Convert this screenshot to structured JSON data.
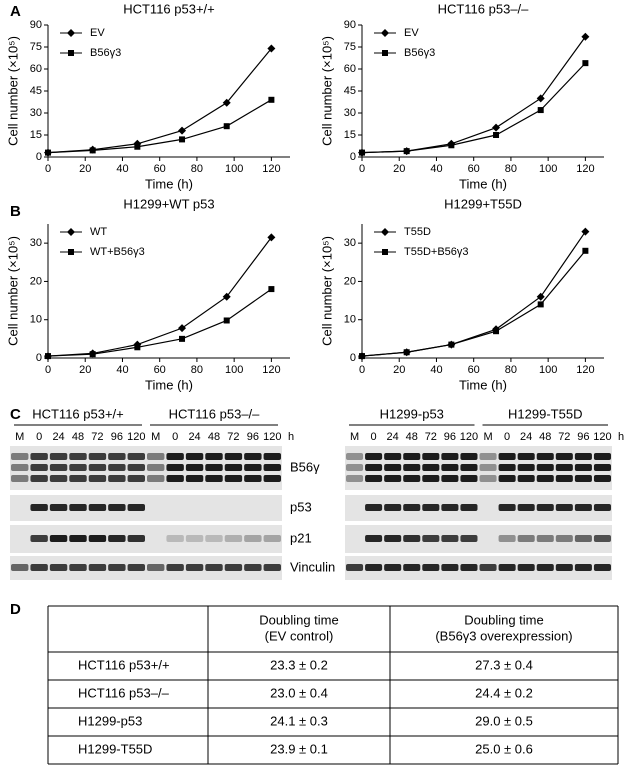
{
  "panel_labels": [
    "A",
    "B",
    "C",
    "D"
  ],
  "chart_data": [
    {
      "type": "line",
      "title": "HCT116 p53+/+",
      "x_label": "Time (h)",
      "y_label": "Cell number (×10⁵)",
      "x": [
        0,
        24,
        48,
        72,
        96,
        120
      ],
      "series": [
        {
          "name": "EV",
          "color": "#000000",
          "marker": "diamond",
          "values": [
            3,
            5,
            9,
            18,
            37,
            74
          ]
        },
        {
          "name": "B56γ3",
          "color": "#000000",
          "marker": "square",
          "values": [
            3,
            4.5,
            7,
            12,
            21,
            39
          ]
        }
      ],
      "xlim": [
        0,
        130
      ],
      "xticks": [
        0,
        20,
        40,
        60,
        80,
        100,
        120
      ],
      "ylim": [
        0,
        90
      ],
      "yticks": [
        0,
        15,
        30,
        45,
        60,
        75,
        90
      ],
      "legend": "upper left"
    },
    {
      "type": "line",
      "title": "HCT116 p53–/–",
      "x_label": "Time (h)",
      "y_label": "Cell number (×10⁵)",
      "x": [
        0,
        24,
        48,
        72,
        96,
        120
      ],
      "series": [
        {
          "name": "EV",
          "color": "#000000",
          "marker": "diamond",
          "values": [
            3,
            4,
            9,
            20,
            40,
            82
          ]
        },
        {
          "name": "B56γ3",
          "color": "#000000",
          "marker": "square",
          "values": [
            3,
            4,
            8,
            15,
            32,
            64
          ]
        }
      ],
      "xlim": [
        0,
        130
      ],
      "xticks": [
        0,
        20,
        40,
        60,
        80,
        100,
        120
      ],
      "ylim": [
        0,
        90
      ],
      "yticks": [
        0,
        15,
        30,
        45,
        60,
        75,
        90
      ],
      "legend": "upper left"
    },
    {
      "type": "line",
      "title": "H1299+WT p53",
      "x_label": "Time (h)",
      "y_label": "Cell number (×10⁵)",
      "x": [
        0,
        24,
        48,
        72,
        96,
        120
      ],
      "series": [
        {
          "name": "WT",
          "color": "#000000",
          "marker": "diamond",
          "values": [
            0.5,
            1.2,
            3.5,
            7.8,
            16,
            31.5
          ]
        },
        {
          "name": "WT+B56γ3",
          "color": "#000000",
          "marker": "square",
          "values": [
            0.5,
            1,
            2.8,
            5,
            9.8,
            18
          ]
        }
      ],
      "xlim": [
        0,
        130
      ],
      "xticks": [
        0,
        20,
        40,
        60,
        80,
        100,
        120
      ],
      "ylim": [
        0,
        35
      ],
      "yticks": [
        0,
        10,
        20,
        30
      ],
      "legend": "upper left"
    },
    {
      "type": "line",
      "title": "H1299+T55D",
      "x_label": "Time (h)",
      "y_label": "Cell number (×10⁵)",
      "x": [
        0,
        24,
        48,
        72,
        96,
        120
      ],
      "series": [
        {
          "name": "T55D",
          "color": "#000000",
          "marker": "diamond",
          "values": [
            0.5,
            1.5,
            3.5,
            7.5,
            16,
            33
          ]
        },
        {
          "name": "T55D+B56γ3",
          "color": "#000000",
          "marker": "square",
          "values": [
            0.5,
            1.5,
            3.5,
            7,
            14,
            28
          ]
        }
      ],
      "xlim": [
        0,
        130
      ],
      "xticks": [
        0,
        20,
        40,
        60,
        80,
        100,
        120
      ],
      "ylim": [
        0,
        35
      ],
      "yticks": [
        0,
        10,
        20,
        30
      ],
      "legend": "upper left"
    }
  ],
  "blots": {
    "groups": [
      "HCT116 p53+/+",
      "HCT116 p53–/–",
      "H1299-p53",
      "H1299-T55D"
    ],
    "lanes": [
      "M",
      "0",
      "24",
      "48",
      "72",
      "96",
      "120"
    ],
    "unit": "h",
    "proteins": [
      "B56γ",
      "p53",
      "p21",
      "Vinculin"
    ]
  },
  "table": {
    "header": [
      [
        "Doubling time",
        "(EV control)"
      ],
      [
        "Doubling time",
        "(B56γ3 overexpression)"
      ]
    ],
    "rows": [
      [
        "HCT116 p53+/+",
        "23.3 ± 0.2",
        "27.3 ± 0.4"
      ],
      [
        "HCT116 p53–/–",
        "23.0 ± 0.4",
        "24.4 ± 0.2"
      ],
      [
        "H1299-p53",
        "24.1 ± 0.3",
        "29.0 ± 0.5"
      ],
      [
        "H1299-T55D",
        "23.9 ± 0.1",
        "25.0 ± 0.6"
      ]
    ]
  }
}
